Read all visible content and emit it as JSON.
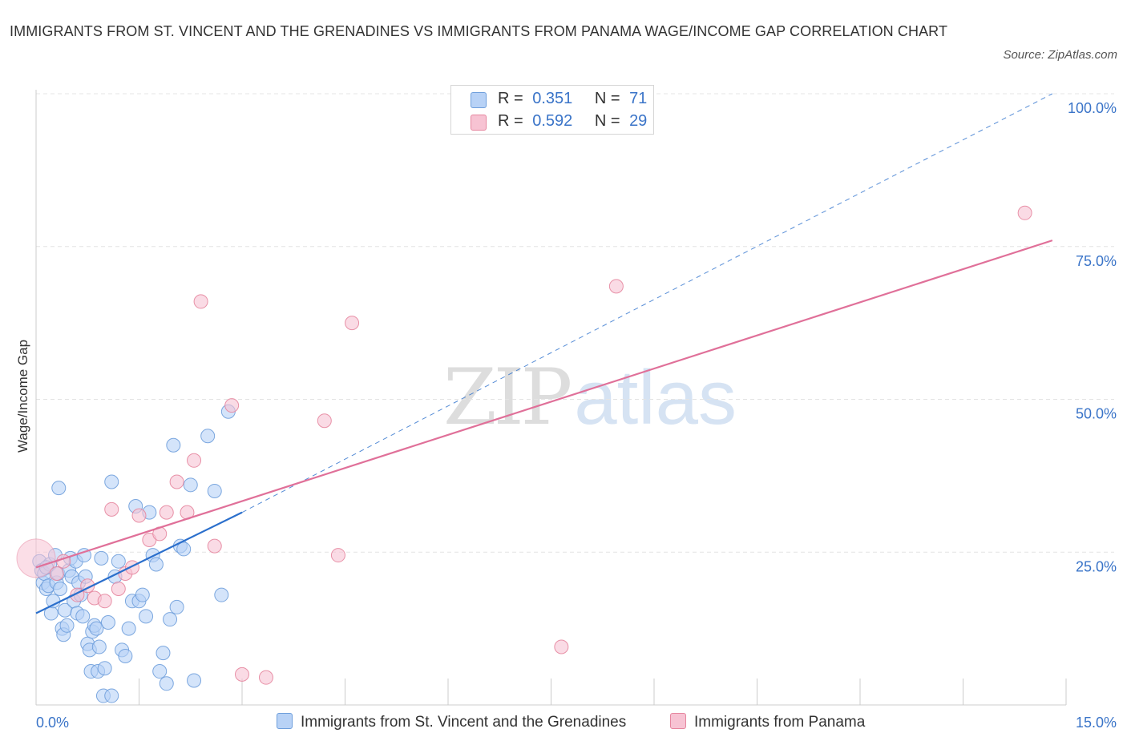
{
  "title": "IMMIGRANTS FROM ST. VINCENT AND THE GRENADINES VS IMMIGRANTS FROM PANAMA WAGE/INCOME GAP CORRELATION CHART",
  "source": "Source: ZipAtlas.com",
  "watermark": {
    "zip": "ZIP",
    "atlas": "atlas"
  },
  "legend": {
    "r_label": "R =",
    "n_label": "N =",
    "series": [
      {
        "r": "0.351",
        "n": "71"
      },
      {
        "r": "0.592",
        "n": "29"
      }
    ]
  },
  "colors": {
    "blue_fill": "#b8d2f6",
    "blue_stroke": "#6f9fdc",
    "blue_line": "#2b6fcc",
    "pink_fill": "#f7c3d3",
    "pink_stroke": "#e6869f",
    "pink_line": "#e07099",
    "tick_label": "#3a74c8",
    "grid": "#e4e4e4"
  },
  "chart_data": {
    "type": "scatter",
    "title": "IMMIGRANTS FROM ST. VINCENT AND THE GRENADINES VS IMMIGRANTS FROM PANAMA WAGE/INCOME GAP CORRELATION CHART",
    "xlabel": "",
    "ylabel": "Wage/Income Gap",
    "xlim": [
      0,
      15
    ],
    "ylim": [
      0,
      100
    ],
    "x_tick_labels": [
      {
        "value": 0,
        "label": "0.0%"
      },
      {
        "value": 15,
        "label": "15.0%"
      }
    ],
    "y_tick_labels": [
      {
        "value": 25,
        "label": "25.0%"
      },
      {
        "value": 50,
        "label": "50.0%"
      },
      {
        "value": 75,
        "label": "75.0%"
      },
      {
        "value": 100,
        "label": "100.0%"
      }
    ],
    "x_minor_ticks": [
      0,
      1.5,
      3,
      4.5,
      6,
      7.5,
      9,
      10.5,
      12,
      13.5,
      15
    ],
    "grid": true,
    "legend_position": "top-center",
    "series": [
      {
        "name": "Immigrants from St. Vincent and the Grenadines",
        "color": "blue",
        "points": [
          [
            0.05,
            23.5
          ],
          [
            0.08,
            22
          ],
          [
            0.1,
            20
          ],
          [
            0.12,
            21.5
          ],
          [
            0.15,
            19
          ],
          [
            0.18,
            19.5
          ],
          [
            0.2,
            23
          ],
          [
            0.22,
            15
          ],
          [
            0.25,
            17
          ],
          [
            0.28,
            24.5
          ],
          [
            0.3,
            20
          ],
          [
            0.32,
            21.5
          ],
          [
            0.35,
            19
          ],
          [
            0.38,
            12.5
          ],
          [
            0.4,
            11.5
          ],
          [
            0.42,
            15.5
          ],
          [
            0.45,
            13
          ],
          [
            0.48,
            22
          ],
          [
            0.5,
            24
          ],
          [
            0.52,
            21
          ],
          [
            0.55,
            17
          ],
          [
            0.58,
            23.5
          ],
          [
            0.6,
            15
          ],
          [
            0.62,
            20
          ],
          [
            0.65,
            18
          ],
          [
            0.68,
            14.5
          ],
          [
            0.7,
            24.5
          ],
          [
            0.72,
            21
          ],
          [
            0.75,
            10
          ],
          [
            0.78,
            9
          ],
          [
            0.8,
            5.5
          ],
          [
            0.82,
            12
          ],
          [
            0.85,
            13
          ],
          [
            0.88,
            12.5
          ],
          [
            0.9,
            5.5
          ],
          [
            0.92,
            9.5
          ],
          [
            0.95,
            24
          ],
          [
            0.98,
            1.5
          ],
          [
            1.0,
            6
          ],
          [
            1.05,
            13.5
          ],
          [
            1.1,
            1.5
          ],
          [
            1.15,
            21
          ],
          [
            1.2,
            23.5
          ],
          [
            1.25,
            9
          ],
          [
            1.3,
            8
          ],
          [
            1.35,
            12.5
          ],
          [
            1.4,
            17
          ],
          [
            1.5,
            17
          ],
          [
            1.6,
            14.5
          ],
          [
            1.55,
            18
          ],
          [
            1.65,
            31.5
          ],
          [
            1.7,
            24.5
          ],
          [
            1.75,
            23
          ],
          [
            1.8,
            5.5
          ],
          [
            1.85,
            8.5
          ],
          [
            1.9,
            3.5
          ],
          [
            1.95,
            14
          ],
          [
            2.0,
            42.5
          ],
          [
            2.05,
            16
          ],
          [
            2.1,
            26
          ],
          [
            2.15,
            25.5
          ],
          [
            2.25,
            36
          ],
          [
            2.3,
            4
          ],
          [
            2.5,
            44
          ],
          [
            2.6,
            35
          ],
          [
            2.7,
            18
          ],
          [
            1.45,
            32.5
          ],
          [
            0.33,
            35.5
          ],
          [
            1.1,
            36.5
          ],
          [
            2.8,
            48
          ],
          [
            0.15,
            22.5
          ]
        ],
        "trend": {
          "x": [
            0,
            3.0
          ],
          "y": [
            15,
            31.5
          ],
          "style": "solid"
        },
        "trend_ext": {
          "x": [
            3.0,
            14.8
          ],
          "y": [
            31.5,
            100
          ],
          "style": "dashed"
        }
      },
      {
        "name": "Immigrants from Panama",
        "color": "pink",
        "points": [
          [
            0.0,
            24
          ],
          [
            0.3,
            21.5
          ],
          [
            0.4,
            23.5
          ],
          [
            0.6,
            18
          ],
          [
            0.75,
            19.5
          ],
          [
            0.85,
            17.5
          ],
          [
            1.0,
            17
          ],
          [
            1.1,
            32
          ],
          [
            1.2,
            19
          ],
          [
            1.3,
            21.5
          ],
          [
            1.4,
            22.5
          ],
          [
            1.5,
            31
          ],
          [
            1.65,
            27
          ],
          [
            1.8,
            28
          ],
          [
            1.9,
            31.5
          ],
          [
            2.05,
            36.5
          ],
          [
            2.2,
            31.5
          ],
          [
            2.3,
            40
          ],
          [
            2.4,
            66
          ],
          [
            2.6,
            26
          ],
          [
            2.85,
            49
          ],
          [
            3.0,
            5
          ],
          [
            3.35,
            4.5
          ],
          [
            4.2,
            46.5
          ],
          [
            4.4,
            24.5
          ],
          [
            4.6,
            62.5
          ],
          [
            7.65,
            9.5
          ],
          [
            8.45,
            68.5
          ],
          [
            14.4,
            80.5
          ]
        ],
        "trend": {
          "x": [
            0,
            14.8
          ],
          "y": [
            22.5,
            76
          ],
          "style": "solid"
        }
      }
    ]
  },
  "bottom_legend": [
    {
      "label": "Immigrants from St. Vincent and the Grenadines"
    },
    {
      "label": "Immigrants from Panama"
    }
  ]
}
